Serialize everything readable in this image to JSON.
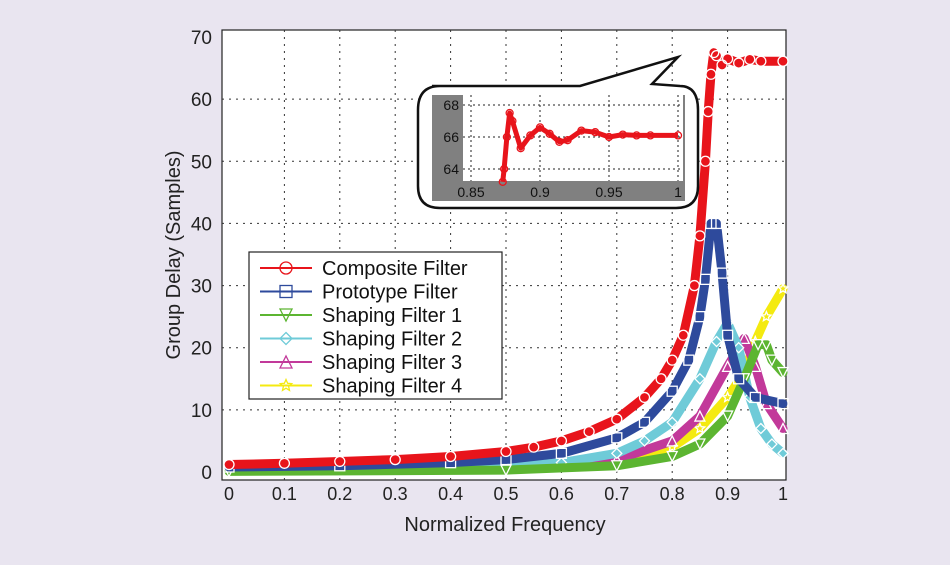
{
  "chart_data": {
    "type": "line",
    "title": "",
    "xlabel": "Normalized Frequency",
    "ylabel": "Group Delay (Samples)",
    "xlim": [
      0,
      1
    ],
    "ylim": [
      0,
      70
    ],
    "xticks": [
      "0",
      "0.1",
      "0.2",
      "0.3",
      "0.4",
      "0.5",
      "0.6",
      "0.7",
      "0.8",
      "0.9",
      "1"
    ],
    "yticks": [
      "0",
      "10",
      "20",
      "30",
      "40",
      "50",
      "60",
      "70"
    ],
    "grid": true,
    "legend_position": "center-left",
    "series": [
      {
        "name": "Composite Filter",
        "color": "#e8141b",
        "marker": "circle",
        "x": [
          0,
          0.1,
          0.2,
          0.3,
          0.4,
          0.5,
          0.55,
          0.6,
          0.65,
          0.7,
          0.75,
          0.78,
          0.8,
          0.82,
          0.84,
          0.85,
          0.86,
          0.865,
          0.87,
          0.875,
          0.88,
          0.89,
          0.9,
          0.92,
          0.94,
          0.96,
          1
        ],
        "y": [
          1.2,
          1.4,
          1.7,
          2.0,
          2.5,
          3.3,
          4,
          5,
          6.5,
          8.5,
          12,
          15,
          18,
          22,
          30,
          38,
          50,
          58,
          64,
          67.5,
          67,
          65.5,
          66.5,
          65.8,
          66.4,
          66.1,
          66.1
        ]
      },
      {
        "name": "Prototype Filter",
        "color": "#2e4a9c",
        "marker": "square",
        "x": [
          0,
          0.2,
          0.4,
          0.5,
          0.6,
          0.7,
          0.75,
          0.8,
          0.83,
          0.85,
          0.86,
          0.87,
          0.88,
          0.89,
          0.9,
          0.92,
          0.95,
          1
        ],
        "y": [
          0.8,
          1,
          1.5,
          2,
          3,
          5.5,
          8,
          13,
          18,
          25,
          31,
          40,
          40,
          32,
          22,
          15,
          12,
          11
        ]
      },
      {
        "name": "Shaping Filter 1",
        "color": "#5cb531",
        "marker": "triangle-down",
        "x": [
          0,
          0.5,
          0.7,
          0.8,
          0.85,
          0.9,
          0.93,
          0.955,
          0.97,
          0.98,
          1
        ],
        "y": [
          0.1,
          0.3,
          1,
          2.5,
          4.5,
          9,
          15,
          20.5,
          20.5,
          18,
          16
        ]
      },
      {
        "name": "Shaping Filter 2",
        "color": "#6fcbd8",
        "marker": "diamond",
        "x": [
          0,
          0.5,
          0.6,
          0.7,
          0.75,
          0.8,
          0.85,
          0.88,
          0.9,
          0.92,
          0.94,
          0.96,
          0.98,
          1
        ],
        "y": [
          0.3,
          0.8,
          1.5,
          3,
          5,
          8,
          15,
          21,
          24,
          20,
          12,
          7,
          4.5,
          3
        ]
      },
      {
        "name": "Shaping Filter 3",
        "color": "#c2399a",
        "marker": "triangle-up",
        "x": [
          0,
          0.5,
          0.6,
          0.7,
          0.8,
          0.85,
          0.9,
          0.93,
          0.95,
          0.97,
          1
        ],
        "y": [
          0.3,
          0.6,
          1,
          2,
          5,
          9,
          17,
          21.5,
          17,
          11,
          7
        ]
      },
      {
        "name": "Shaping Filter 4",
        "color": "#f4ea10",
        "marker": "star",
        "x": [
          0,
          0.5,
          0.6,
          0.7,
          0.8,
          0.85,
          0.9,
          0.93,
          0.95,
          0.97,
          1
        ],
        "y": [
          0.2,
          0.5,
          1,
          1.5,
          4,
          7,
          12,
          16,
          21,
          25,
          29.5
        ]
      }
    ],
    "inset": {
      "xlim": [
        0.85,
        1
      ],
      "ylim": [
        63.5,
        68.3
      ],
      "xticks": [
        "0.85",
        "0.9",
        "0.95",
        "1"
      ],
      "yticks": [
        "64",
        "66",
        "68"
      ],
      "series_name": "Composite Filter",
      "x": [
        0.873,
        0.874,
        0.876,
        0.878,
        0.88,
        0.886,
        0.893,
        0.9,
        0.907,
        0.914,
        0.92,
        0.93,
        0.94,
        0.95,
        0.96,
        0.97,
        0.98,
        1
      ],
      "y": [
        63.2,
        64,
        66,
        67.5,
        67,
        65.3,
        66.1,
        66.6,
        66.2,
        65.7,
        65.8,
        66.4,
        66.3,
        66,
        66.15,
        66.1,
        66.1,
        66.1
      ]
    }
  }
}
